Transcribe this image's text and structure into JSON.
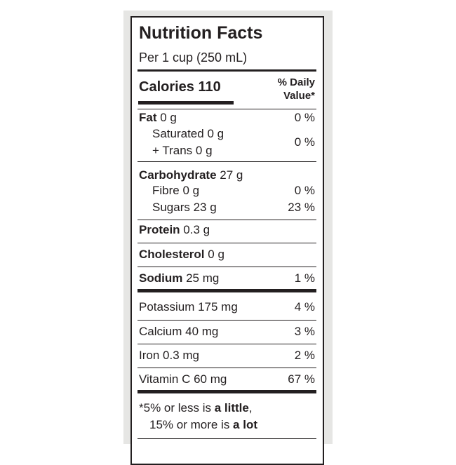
{
  "header": {
    "title": "Nutrition Facts",
    "serving": "Per 1 cup (250 mL)"
  },
  "calories": "Calories 110",
  "daily_value_header": {
    "line1": "% Daily",
    "line2": "Value*"
  },
  "nutrients": [
    {
      "name": "Fat",
      "amount": "0 g",
      "dv": "0 %"
    },
    {
      "name": "Saturated 0 g",
      "name2": "+ Trans 0 g",
      "dv": "0 %"
    },
    {
      "name": "Carbohydrate",
      "amount": "27 g"
    },
    {
      "name": "Fibre 0 g",
      "dv": "0 %"
    },
    {
      "name": "Sugars 23 g",
      "dv": "23 %"
    },
    {
      "name": "Protein",
      "amount": "0.3 g"
    },
    {
      "name": "Cholesterol",
      "amount": "0 g"
    },
    {
      "name": "Sodium",
      "amount": "25 mg",
      "dv": "1 %"
    },
    {
      "name": "Potassium 175 mg",
      "dv": "4 %"
    },
    {
      "name": "Calcium 40 mg",
      "dv": "3 %"
    },
    {
      "name": "Iron 0.3 mg",
      "dv": "2 %"
    },
    {
      "name": "Vitamin C 60 mg",
      "dv": "67 %"
    }
  ],
  "footnote": [
    [
      {
        "text": "*5% or less is "
      },
      {
        "text": "a little",
        "bold": true
      },
      {
        "text": ","
      }
    ],
    [
      {
        "text": "15% or more is "
      },
      {
        "text": "a lot",
        "bold": true
      }
    ]
  ]
}
